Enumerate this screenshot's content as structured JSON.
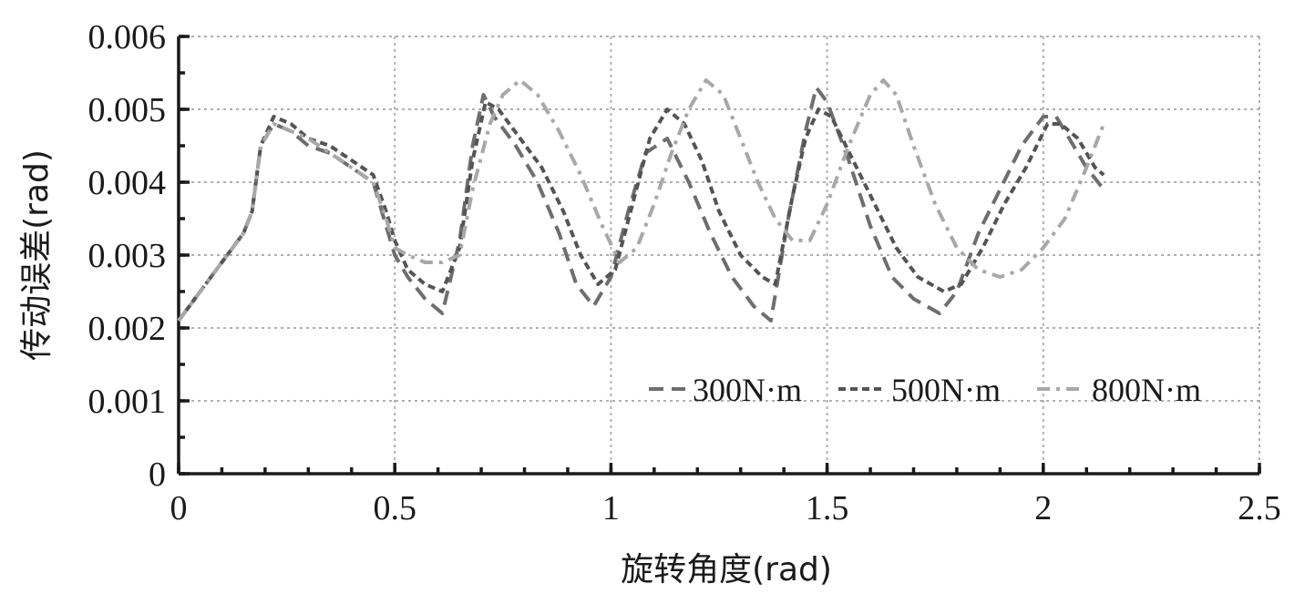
{
  "chart_data": {
    "type": "line",
    "xlabel": "旋转角度(rad)",
    "ylabel": "传动误差(rad)",
    "xlim": [
      0,
      2.5
    ],
    "ylim": [
      0,
      0.006
    ],
    "x_ticks": [
      "0",
      "0.5",
      "1",
      "1.5",
      "2",
      "2.5"
    ],
    "y_ticks": [
      "0",
      "0.001",
      "0.002",
      "0.003",
      "0.004",
      "0.005",
      "0.006"
    ],
    "grid": true,
    "legend_position": "bottom-right",
    "series": [
      {
        "name": "300N·m",
        "style": "dashed",
        "color": "#6e6e6e",
        "x": [
          0,
          0.05,
          0.1,
          0.15,
          0.17,
          0.19,
          0.22,
          0.26,
          0.3,
          0.35,
          0.4,
          0.45,
          0.48,
          0.5,
          0.53,
          0.57,
          0.61,
          0.65,
          0.68,
          0.705,
          0.73,
          0.78,
          0.83,
          0.88,
          0.92,
          0.96,
          1.0,
          1.04,
          1.08,
          1.13,
          1.18,
          1.23,
          1.28,
          1.33,
          1.37,
          1.41,
          1.45,
          1.475,
          1.5,
          1.55,
          1.6,
          1.65,
          1.7,
          1.76,
          1.8,
          1.85,
          1.9,
          1.95,
          2.0,
          2.03,
          2.06,
          2.1,
          2.14
        ],
        "values": [
          0.0021,
          0.0025,
          0.0029,
          0.0033,
          0.0036,
          0.0045,
          0.0048,
          0.0047,
          0.0045,
          0.0044,
          0.0042,
          0.004,
          0.0034,
          0.003,
          0.0027,
          0.0024,
          0.0022,
          0.0032,
          0.0045,
          0.0052,
          0.0049,
          0.0045,
          0.004,
          0.0033,
          0.0026,
          0.0023,
          0.0027,
          0.0036,
          0.0044,
          0.0046,
          0.004,
          0.0033,
          0.0027,
          0.0023,
          0.0021,
          0.0035,
          0.0047,
          0.0053,
          0.0051,
          0.0043,
          0.0034,
          0.0027,
          0.0024,
          0.0022,
          0.0025,
          0.0033,
          0.0039,
          0.0045,
          0.0049,
          0.0049,
          0.0046,
          0.0042,
          0.0039
        ]
      },
      {
        "name": "500N·m",
        "style": "short-dashed",
        "color": "#545454",
        "x": [
          0,
          0.05,
          0.1,
          0.15,
          0.17,
          0.19,
          0.22,
          0.26,
          0.3,
          0.35,
          0.4,
          0.45,
          0.48,
          0.5,
          0.53,
          0.57,
          0.61,
          0.65,
          0.68,
          0.71,
          0.74,
          0.79,
          0.84,
          0.89,
          0.93,
          0.97,
          1.01,
          1.05,
          1.09,
          1.13,
          1.17,
          1.21,
          1.25,
          1.3,
          1.35,
          1.38,
          1.42,
          1.45,
          1.48,
          1.51,
          1.56,
          1.61,
          1.66,
          1.71,
          1.77,
          1.81,
          1.86,
          1.91,
          1.96,
          2.01,
          2.04,
          2.08,
          2.12,
          2.14
        ],
        "values": [
          0.0021,
          0.0025,
          0.0029,
          0.0033,
          0.0036,
          0.0045,
          0.0049,
          0.0048,
          0.0046,
          0.0045,
          0.0043,
          0.0041,
          0.0036,
          0.0032,
          0.0028,
          0.0026,
          0.0025,
          0.0031,
          0.0043,
          0.0051,
          0.005,
          0.0046,
          0.0042,
          0.0036,
          0.003,
          0.0026,
          0.0028,
          0.0037,
          0.0046,
          0.005,
          0.0048,
          0.0043,
          0.0036,
          0.003,
          0.0027,
          0.0026,
          0.0038,
          0.0046,
          0.005,
          0.0049,
          0.0043,
          0.0037,
          0.0031,
          0.0027,
          0.0025,
          0.0026,
          0.0031,
          0.0037,
          0.0042,
          0.0048,
          0.0048,
          0.0046,
          0.0042,
          0.0041
        ]
      },
      {
        "name": "800N·m",
        "style": "dash-dot",
        "color": "#a8a8a8",
        "x": [
          0,
          0.05,
          0.1,
          0.15,
          0.17,
          0.19,
          0.22,
          0.26,
          0.3,
          0.35,
          0.4,
          0.45,
          0.48,
          0.5,
          0.53,
          0.57,
          0.61,
          0.65,
          0.68,
          0.72,
          0.75,
          0.79,
          0.83,
          0.88,
          0.93,
          0.98,
          1.02,
          1.06,
          1.1,
          1.14,
          1.18,
          1.22,
          1.26,
          1.3,
          1.34,
          1.38,
          1.42,
          1.46,
          1.5,
          1.55,
          1.6,
          1.63,
          1.66,
          1.7,
          1.75,
          1.8,
          1.85,
          1.9,
          1.95,
          2.0,
          2.05,
          2.1,
          2.14
        ],
        "values": [
          0.0021,
          0.0025,
          0.0029,
          0.0033,
          0.0036,
          0.0045,
          0.0048,
          0.0047,
          0.0046,
          0.0044,
          0.0042,
          0.004,
          0.0035,
          0.0031,
          0.003,
          0.0029,
          0.0029,
          0.003,
          0.0039,
          0.0048,
          0.0052,
          0.0054,
          0.0052,
          0.0047,
          0.0041,
          0.0034,
          0.0029,
          0.0031,
          0.0037,
          0.0044,
          0.005,
          0.0054,
          0.0052,
          0.0046,
          0.004,
          0.0035,
          0.0032,
          0.0032,
          0.0037,
          0.0045,
          0.0052,
          0.0054,
          0.0052,
          0.0045,
          0.0037,
          0.0031,
          0.0028,
          0.0027,
          0.0028,
          0.0031,
          0.0035,
          0.0042,
          0.0048
        ]
      }
    ]
  }
}
